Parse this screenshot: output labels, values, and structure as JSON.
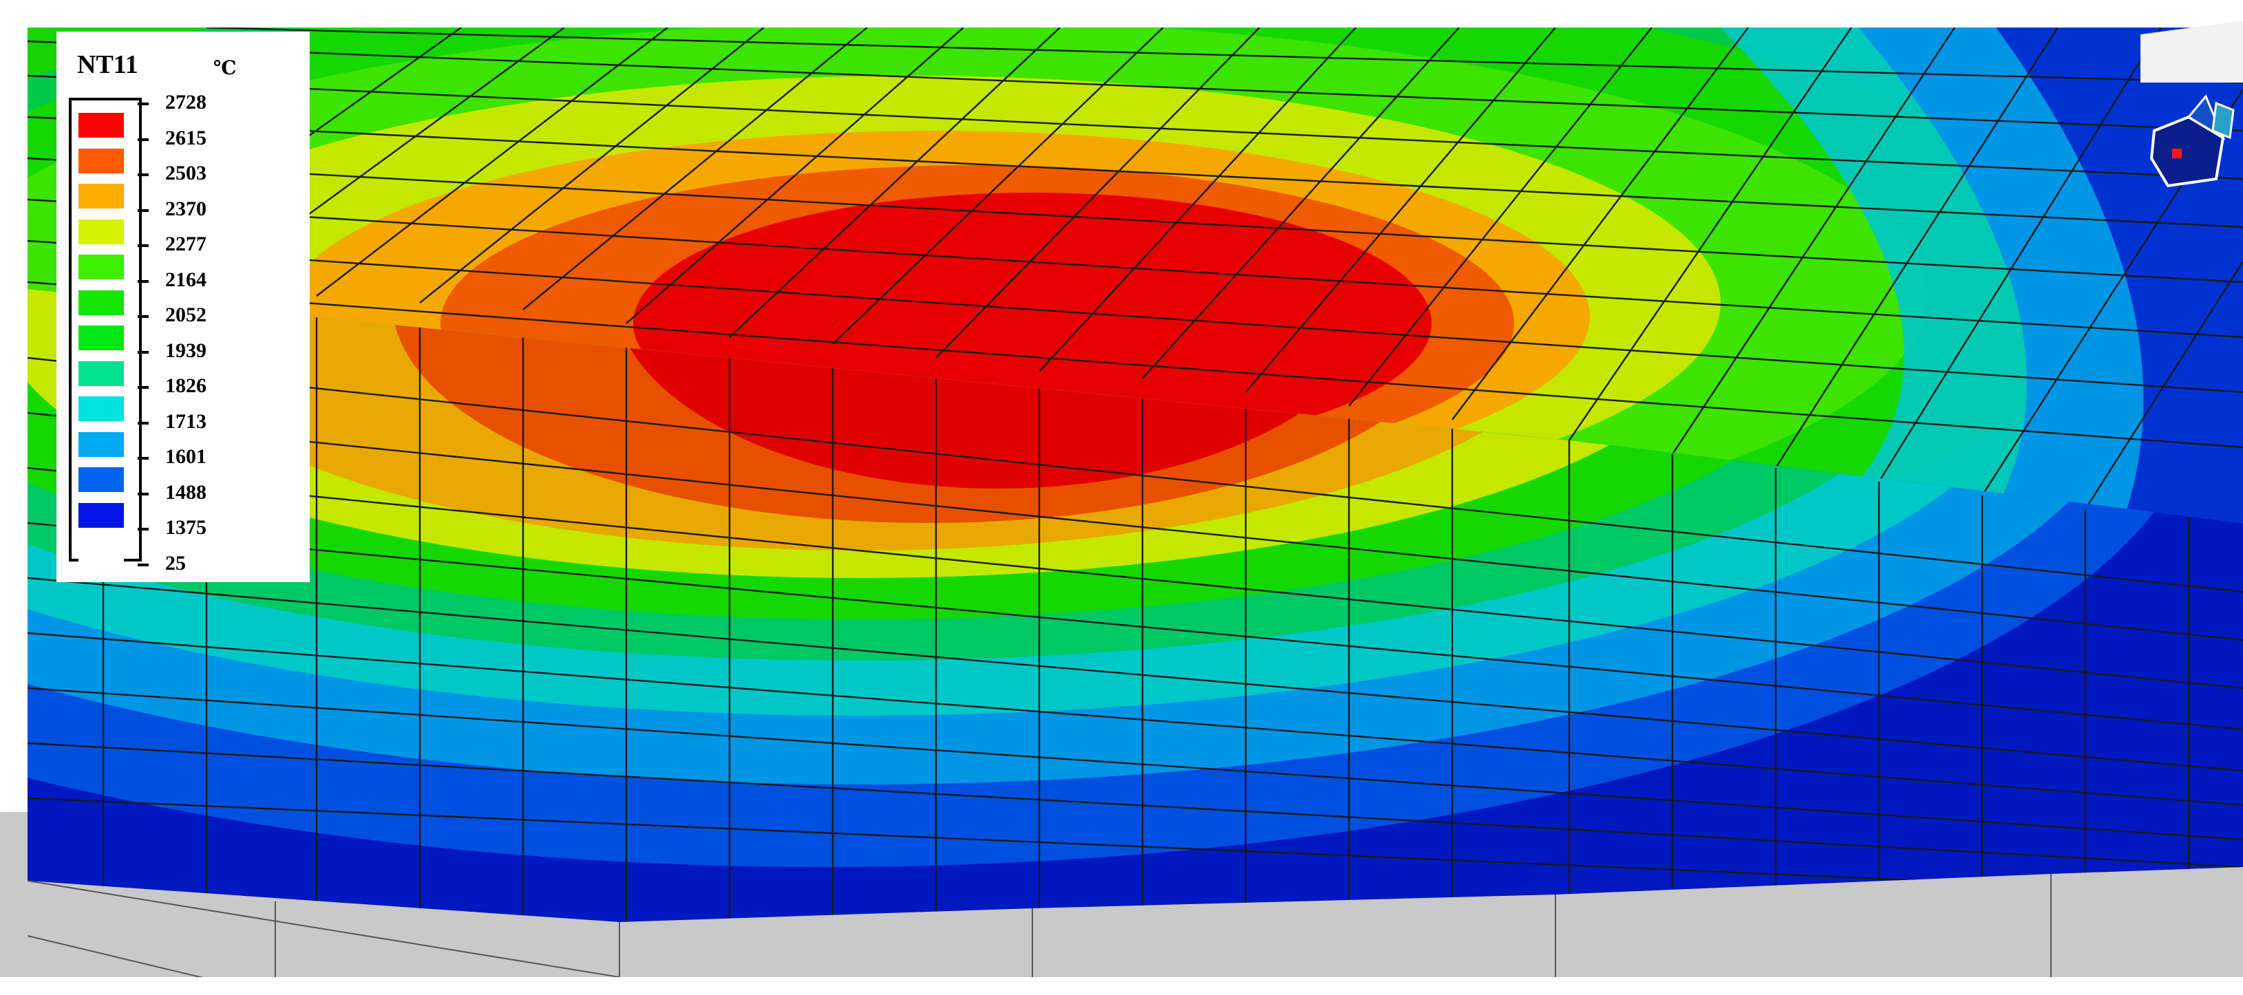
{
  "legend": {
    "title": "NT11",
    "unit": "℃",
    "values": [
      "2728",
      "2615",
      "2503",
      "2370",
      "2277",
      "2164",
      "2052",
      "1939",
      "1826",
      "1713",
      "1601",
      "1488",
      "1375",
      "25"
    ],
    "colors": [
      "#ff0000",
      "#ff5a00",
      "#ffab00",
      "#d6f200",
      "#3cf000",
      "#14e600",
      "#00e614",
      "#00e18c",
      "#00e1e1",
      "#00aaf0",
      "#0064f0",
      "#0014e6",
      "#ffffff"
    ]
  },
  "scene": {
    "bands": [
      "#e00000",
      "#f25500",
      "#f5a000",
      "#c8e600",
      "#32dc00",
      "#00d200",
      "#00c864",
      "#00c8c8",
      "#0096e6",
      "#005ae6",
      "#0014c8"
    ],
    "floor_color": "#c8c8c8",
    "mesh_color": "#1a1a1a"
  },
  "icons": {
    "view_cube": "view-triad-icon"
  }
}
